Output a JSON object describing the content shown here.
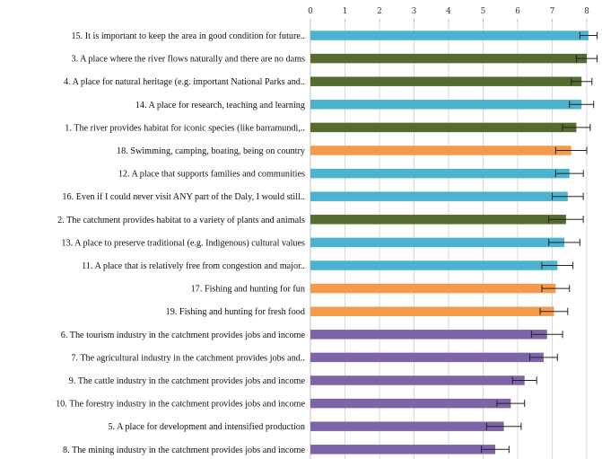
{
  "chart_data": {
    "type": "bar",
    "orientation": "horizontal",
    "xlim": [
      0,
      8
    ],
    "xticks": [
      0,
      1,
      2,
      3,
      4,
      5,
      6,
      7,
      8
    ],
    "grid": true,
    "colors": {
      "blue": "#4bb3cf",
      "green": "#556b2f",
      "orange": "#f59a4b",
      "purple": "#7f63a8"
    },
    "bars": [
      {
        "label": "15. It is important to keep the area in good condition for future..",
        "value": 8.05,
        "err": 0.25,
        "color": "blue"
      },
      {
        "label": "3. A place where the river flows naturally and there are no dams",
        "value": 8.0,
        "err": 0.3,
        "color": "green"
      },
      {
        "label": "4. A place for natural heritage (e.g. important National Parks and..",
        "value": 7.85,
        "err": 0.3,
        "color": "green"
      },
      {
        "label": "14. A place for research, teaching and learning",
        "value": 7.85,
        "err": 0.35,
        "color": "blue"
      },
      {
        "label": "1. The river provides habitat for iconic species (like barramundi,..",
        "value": 7.7,
        "err": 0.4,
        "color": "green"
      },
      {
        "label": "18. Swimming, camping, boating, being on country",
        "value": 7.55,
        "err": 0.45,
        "color": "orange"
      },
      {
        "label": "12. A place that supports families and communities",
        "value": 7.5,
        "err": 0.4,
        "color": "blue"
      },
      {
        "label": "16. Even if I could never visit ANY part of the Daly, I would still..",
        "value": 7.45,
        "err": 0.45,
        "color": "blue"
      },
      {
        "label": "2. The catchment provides habitat to a variety of plants and animals",
        "value": 7.4,
        "err": 0.5,
        "color": "green"
      },
      {
        "label": "13. A place to preserve traditional (e.g. Indigenous) cultural values",
        "value": 7.35,
        "err": 0.45,
        "color": "blue"
      },
      {
        "label": "11. A place that is relatively free from congestion and major..",
        "value": 7.15,
        "err": 0.45,
        "color": "blue"
      },
      {
        "label": "17. Fishing and hunting for fun",
        "value": 7.1,
        "err": 0.4,
        "color": "orange"
      },
      {
        "label": "19. Fishing and hunting for fresh food",
        "value": 7.05,
        "err": 0.4,
        "color": "orange"
      },
      {
        "label": "6. The tourism industry in the catchment provides jobs and income",
        "value": 6.85,
        "err": 0.45,
        "color": "purple"
      },
      {
        "label": "7. The agricultural industry in the catchment provides jobs and..",
        "value": 6.75,
        "err": 0.4,
        "color": "purple"
      },
      {
        "label": "9. The cattle industry in the catchment provides jobs and income",
        "value": 6.2,
        "err": 0.35,
        "color": "purple"
      },
      {
        "label": "10. The forestry industry in the catchment provides jobs and income",
        "value": 5.8,
        "err": 0.4,
        "color": "purple"
      },
      {
        "label": "5. A place for development and intensified production",
        "value": 5.6,
        "err": 0.5,
        "color": "purple"
      },
      {
        "label": "8. The mining industry in the catchment provides jobs and income",
        "value": 5.35,
        "err": 0.4,
        "color": "purple"
      }
    ]
  }
}
